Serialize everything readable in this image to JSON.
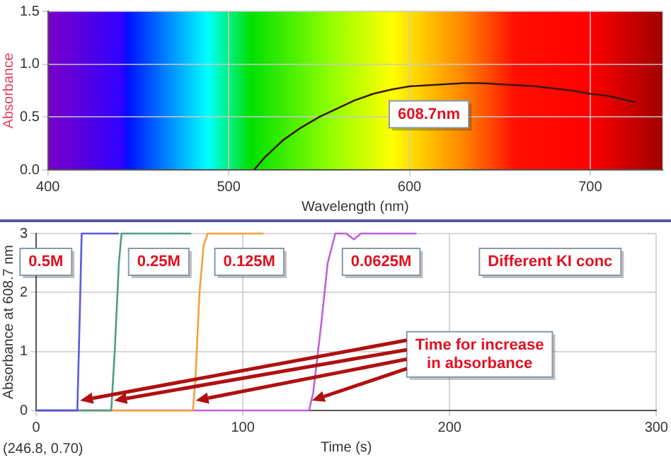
{
  "chart_data": [
    {
      "type": "line",
      "xlabel": "Wavelength (nm)",
      "ylabel": "Absorbance",
      "color": "#3a1a08",
      "x": [
        514,
        520,
        530,
        540,
        550,
        560,
        570,
        580,
        590,
        600,
        610,
        620,
        630,
        640,
        650,
        660,
        670,
        680,
        690,
        700,
        710,
        720,
        725
      ],
      "values": [
        0,
        0.12,
        0.28,
        0.4,
        0.5,
        0.58,
        0.66,
        0.72,
        0.76,
        0.79,
        0.8,
        0.81,
        0.82,
        0.82,
        0.81,
        0.8,
        0.79,
        0.77,
        0.75,
        0.72,
        0.7,
        0.66,
        0.64
      ],
      "xlim": [
        400,
        740
      ],
      "ylim": [
        0,
        1.5
      ],
      "xticks": [
        400,
        500,
        600,
        700
      ],
      "yticks": [
        {
          "value": 0,
          "label": "0.0"
        },
        {
          "value": 0.5,
          "label": "0.5"
        },
        {
          "value": 1,
          "label": "1.0"
        },
        1.5
      ],
      "grid": true,
      "annotations": [
        "608.7nm"
      ]
    },
    {
      "type": "line",
      "xlabel": "Time (s)",
      "ylabel": "Absorbance at 608.7 nm",
      "series": [
        {
          "name": "0.5M",
          "color": "#5a5ae0",
          "x": [
            0,
            19.9,
            21,
            22,
            40
          ],
          "values": [
            0,
            0,
            1.5,
            3,
            3
          ]
        },
        {
          "name": "0.25M",
          "color": "#4aa080",
          "x": [
            0,
            36.3,
            38,
            40,
            41.3,
            75
          ],
          "values": [
            0,
            0,
            1,
            2.5,
            3,
            3
          ]
        },
        {
          "name": "0.125M",
          "color": "#f5a040",
          "x": [
            0,
            75.8,
            77,
            79,
            81,
            83,
            110
          ],
          "values": [
            0,
            0,
            0.5,
            2,
            2.8,
            3,
            3
          ]
        },
        {
          "name": "0.0625M",
          "color": "#c060e0",
          "x": [
            0,
            132,
            134,
            138,
            141,
            144.7,
            150,
            153.7,
            157,
            184
          ],
          "values": [
            0,
            0,
            0.3,
            1.5,
            2.5,
            3,
            3,
            2.9,
            3,
            3
          ]
        }
      ],
      "xlim": [
        0,
        300
      ],
      "ylim": [
        0,
        3
      ],
      "xticks": [
        0,
        100,
        200,
        300
      ],
      "yticks": [
        0,
        1,
        2,
        3
      ],
      "grid": true,
      "annotations": [
        "Different KI conc",
        "Time for increase in absorbance",
        "(246.8, 0.70)"
      ]
    }
  ]
}
